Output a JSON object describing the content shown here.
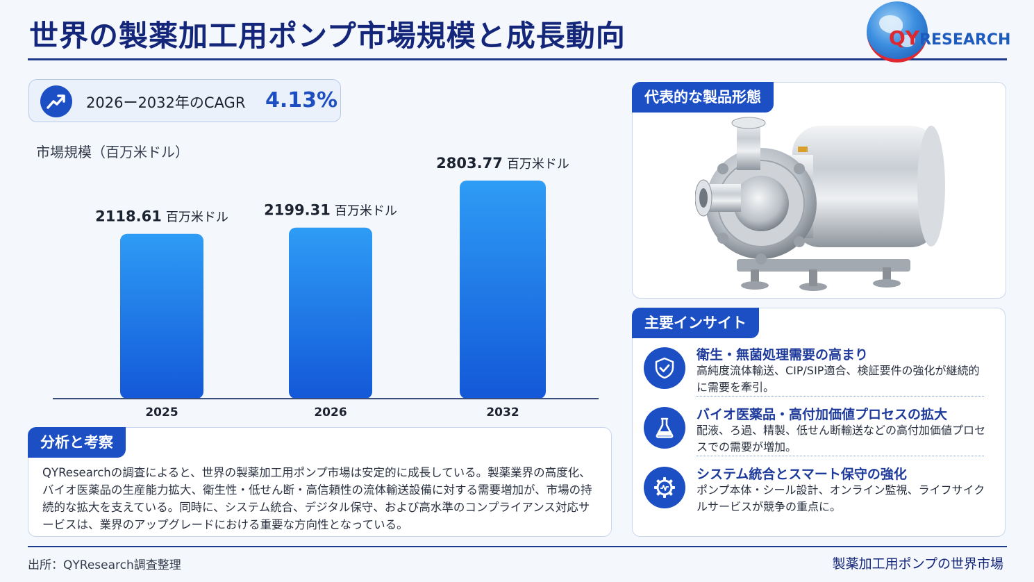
{
  "title": "世界の製薬加工用ポンプ市場規模と成長動向",
  "logo": {
    "qy": "QY",
    "rest": "RESEARCH"
  },
  "cagr": {
    "label": "2026ー2032年のCAGR",
    "value": "4.13%",
    "icon": "trend-up-icon"
  },
  "chart_data": {
    "type": "bar",
    "ylabel": "市場規模（百万米ドル）",
    "categories": [
      "2025",
      "2026",
      "2032"
    ],
    "values": [
      2118.61,
      2199.31,
      2803.77
    ],
    "value_labels": [
      "2118.61",
      "2199.31",
      "2803.77"
    ],
    "unit": "百万米ドル",
    "bar_color": "#1f6fe0",
    "grid": false
  },
  "analysis": {
    "title": "分析と考察",
    "body": "QYResearchの調査によると、世界の製薬加工用ポンプ市場は安定的に成長している。製薬業界の高度化、バイオ医薬品の生産能力拡大、衛生性・低せん断・高信頼性の流体輸送設備に対する需要増加が、市場の持続的な拡大を支えている。同時に、システム統合、デジタル保守、および高水準のコンプライアンス対応サービスは、業界のアップグレードにおける重要な方向性となっている。"
  },
  "product": {
    "title": "代表的な製品形態"
  },
  "insights": {
    "title": "主要インサイト",
    "items": [
      {
        "icon": "shield-check-icon",
        "title": "衛生・無菌処理需要の高まり",
        "desc": "高純度流体輸送、CIP/SIP適合、検証要件の強化が継続的に需要を牽引。"
      },
      {
        "icon": "flask-icon",
        "title": "バイオ医薬品・高付加価値プロセスの拡大",
        "desc": "配液、ろ過、精製、低せん断輸送などの高付加価値プロセスでの需要が増加。"
      },
      {
        "icon": "gear-icon",
        "title": "システム統合とスマート保守の強化",
        "desc": "ポンプ本体・シール設計、オンライン監視、ライフサイクルサービスが競争の重点に。"
      }
    ]
  },
  "footer": {
    "source": "出所：QYResearch調査整理",
    "right": "製薬加工用ポンプの世界市場"
  }
}
